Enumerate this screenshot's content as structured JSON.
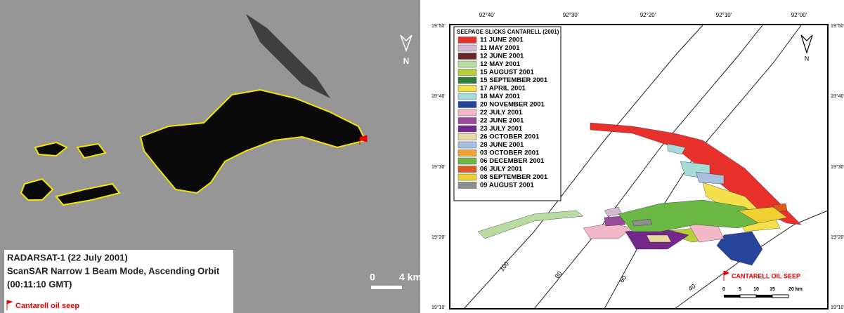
{
  "left_panel": {
    "north": "N",
    "scale": {
      "zero": "0",
      "distance": "4 km"
    },
    "caption": [
      "RADARSAT-1 (22 July 2001)",
      "ScanSAR Narrow 1 Beam Mode, Ascending Orbit",
      "(00:11:10 GMT)"
    ],
    "seep_label": "Cantarell oil seep"
  },
  "right_panel": {
    "lon_labels": [
      "92°40'",
      "92°30'",
      "92°20'",
      "92°10'",
      "92°00'"
    ],
    "lat_labels": [
      "19°50'",
      "19°40'",
      "19°30'",
      "19°20'",
      "19°10'"
    ],
    "legend": {
      "title": "SEEPAGE SLICKS CANTARELL (2001)",
      "items": [
        {
          "label": "11 JUNE 2001",
          "color": "#e8312b"
        },
        {
          "label": "11 MAY 2001",
          "color": "#d7b6d8"
        },
        {
          "label": "12 JUNE 2001",
          "color": "#6b2323"
        },
        {
          "label": "12 MAY 2001",
          "color": "#b9dca2"
        },
        {
          "label": "15 AUGUST 2001",
          "color": "#b5cf3a"
        },
        {
          "label": "15 SEPTEMBER 2001",
          "color": "#2e7d3a"
        },
        {
          "label": "17 APRIL 2001",
          "color": "#f4e04a"
        },
        {
          "label": "18 MAY 2001",
          "color": "#a6dcd8"
        },
        {
          "label": "20 NOVEMBER 2001",
          "color": "#25449a"
        },
        {
          "label": "22 JULY 2001",
          "color": "#f2b8c8"
        },
        {
          "label": "22 JUNE 2001",
          "color": "#9a4a9a"
        },
        {
          "label": "23 JULY 2001",
          "color": "#74288a"
        },
        {
          "label": "26 OCTOBER 2001",
          "color": "#e8d9a2"
        },
        {
          "label": "28 JUNE 2001",
          "color": "#a9bfe0"
        },
        {
          "label": "03 OCTOBER 2001",
          "color": "#f3a232"
        },
        {
          "label": "06 DECEMBER 2001",
          "color": "#6cb845"
        },
        {
          "label": "06 JULY 2001",
          "color": "#e05a20"
        },
        {
          "label": "08 SEPTEMBER 2001",
          "color": "#f0d030"
        },
        {
          "label": "09 AUGUST 2001",
          "color": "#8a9090"
        }
      ]
    },
    "depth_labels": [
      "100",
      "80",
      "60",
      "40"
    ],
    "north": "N",
    "seep_label": "CANTARELL OIL SEEP",
    "scale_labels": [
      "0",
      "5",
      "10",
      "15",
      "20 km"
    ]
  }
}
